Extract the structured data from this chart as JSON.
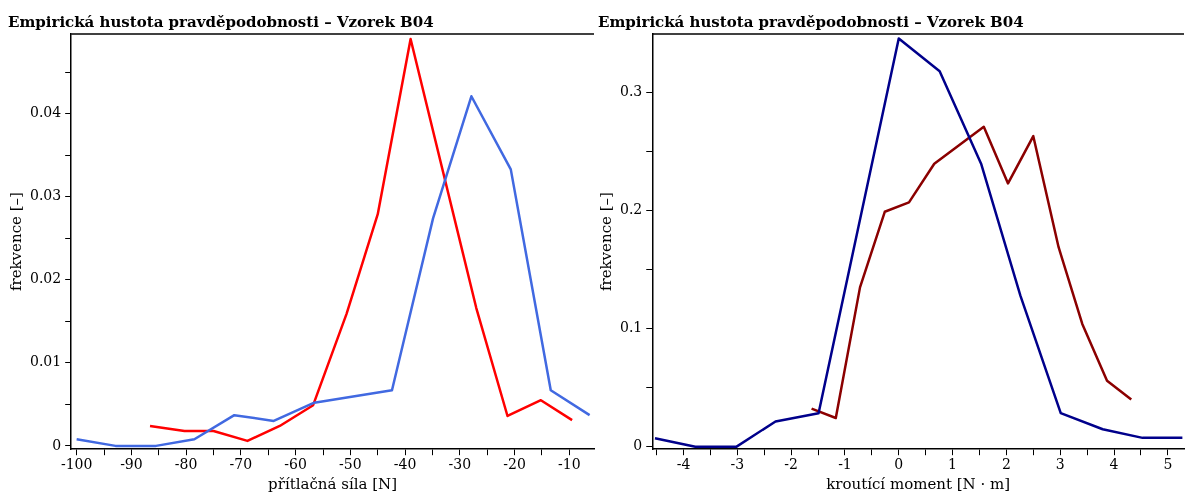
{
  "chart_data": [
    {
      "type": "line",
      "title": "Empirická hustota pravděpodobnosti – Vzorek B04",
      "xlabel": "přítlačná síla [N]",
      "ylabel": "frekvence [–]",
      "xlim": [
        -101,
        -5.5
      ],
      "ylim": [
        -0.0004,
        0.0496
      ],
      "xticks": [
        -100,
        -90,
        -80,
        -70,
        -60,
        -50,
        -40,
        -30,
        -20,
        -10,
        {
          "value": -95,
          "label": null
        },
        {
          "value": -85,
          "label": null
        },
        {
          "value": -75,
          "label": null
        },
        {
          "value": -65,
          "label": null
        },
        {
          "value": -55,
          "label": null
        },
        {
          "value": -45,
          "label": null
        },
        {
          "value": -35,
          "label": null
        },
        {
          "value": -25,
          "label": null
        },
        {
          "value": -15,
          "label": null
        }
      ],
      "yticks": [
        0,
        0.01,
        0.02,
        0.03,
        0.04,
        {
          "value": 0.005,
          "label": null
        },
        {
          "value": 0.015,
          "label": null
        },
        {
          "value": 0.025,
          "label": null
        },
        {
          "value": 0.035,
          "label": null
        },
        {
          "value": 0.045,
          "label": null
        }
      ],
      "grid": false,
      "line_style": "solid",
      "marker": "none",
      "series": [
        {
          "color": "#4169e1",
          "x": [
            -100,
            -92.9,
            -85.5,
            -78.5,
            -71.2,
            -64.0,
            -56.6,
            -42.4,
            -34.9,
            -27.9,
            -20.7,
            -13.4,
            -6.3
          ],
          "values": [
            0.0008,
            0,
            0,
            0.0008,
            0.0037,
            0.003,
            0.0052,
            0.0067,
            0.0274,
            0.0421,
            0.0333,
            0.0067,
            0.0037
          ]
        },
        {
          "color": "#ff0000",
          "x": [
            -86.6,
            -80.3,
            -75.0,
            -68.8,
            -62.9,
            -56.8,
            -50.7,
            -45.0,
            -39.0,
            -27.0,
            -21.3,
            -15.2,
            -9.5
          ],
          "values": [
            0.0024,
            0.0018,
            0.0018,
            0.0006,
            0.0024,
            0.0049,
            0.0159,
            0.0279,
            0.049,
            0.0166,
            0.0036,
            0.0055,
            0.0031
          ]
        }
      ]
    },
    {
      "type": "line",
      "title": "Empirická hustota pravděpodobnosti – Vzorek B04",
      "xlabel": "kroutící moment [N · m]",
      "ylabel": "frekvence [–]",
      "xlim": [
        -4.58,
        5.3
      ],
      "ylim": [
        -0.002,
        0.3495
      ],
      "xticks": [
        -4,
        -3,
        -2,
        -1,
        0,
        1,
        2,
        3,
        4,
        5,
        {
          "value": -4.5,
          "label": null
        },
        {
          "value": -3.5,
          "label": null
        },
        {
          "value": -2.5,
          "label": null
        },
        {
          "value": -1.5,
          "label": null
        },
        {
          "value": -0.5,
          "label": null
        },
        {
          "value": 0.5,
          "label": null
        },
        {
          "value": 1.5,
          "label": null
        },
        {
          "value": 2.5,
          "label": null
        },
        {
          "value": 3.5,
          "label": null
        },
        {
          "value": 4.5,
          "label": null
        }
      ],
      "yticks": [
        0,
        0.1,
        0.2,
        0.3,
        {
          "value": 0.05,
          "label": null
        },
        {
          "value": 0.15,
          "label": null
        },
        {
          "value": 0.25,
          "label": null
        }
      ],
      "grid": false,
      "line_style": "solid",
      "marker": "none",
      "series": [
        {
          "color": "#00008b",
          "x": [
            -4.53,
            -3.78,
            -3.02,
            -2.29,
            -1.49,
            0,
            0.76,
            1.53,
            2.26,
            3.01,
            3.79,
            4.53,
            5.27
          ],
          "values": [
            0.0073,
            0,
            0,
            0.0215,
            0.0285,
            0.3457,
            0.318,
            0.2397,
            0.128,
            0.0285,
            0.0149,
            0.0076,
            0.0076
          ]
        },
        {
          "color": "#8b0000",
          "x": [
            -1.62,
            -1.17,
            -0.72,
            -0.26,
            0.19,
            0.66,
            1.58,
            2.03,
            2.5,
            2.97,
            3.41,
            3.87,
            4.32
          ],
          "values": [
            0.0323,
            0.0244,
            0.135,
            0.199,
            0.207,
            0.2397,
            0.271,
            0.223,
            0.263,
            0.169,
            0.104,
            0.056,
            0.04
          ]
        }
      ]
    }
  ]
}
